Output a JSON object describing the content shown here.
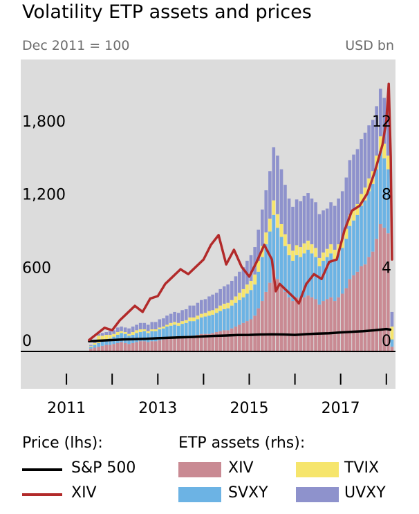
{
  "chart_data": {
    "type": "bar+line",
    "title": "Volatility ETP assets and prices",
    "left_axis_label": "Dec 2011 = 100",
    "right_axis_label": "USD bn",
    "left_ticks": [
      "1,800",
      "1,200",
      "600",
      "0"
    ],
    "left_tick_values": [
      1800,
      1200,
      600,
      0
    ],
    "right_ticks": [
      "12",
      "8",
      "4",
      "0"
    ],
    "right_tick_values": [
      12,
      8,
      4,
      0
    ],
    "left_ylim": [
      -300,
      2400
    ],
    "right_ylim": [
      -2,
      16
    ],
    "x_ticks": [
      "2011",
      "2013",
      "2015",
      "2017"
    ],
    "x_tick_values": [
      2011,
      2013,
      2015,
      2017
    ],
    "x_range": [
      2010.0,
      2018.2
    ],
    "grid": false,
    "legend": {
      "price_title": "Price (lhs):",
      "assets_title": "ETP assets (rhs):",
      "price_series": [
        {
          "name": "S&P 500",
          "color": "#000000"
        },
        {
          "name": "XIV",
          "color": "#b22a2a"
        }
      ],
      "asset_series": [
        {
          "name": "XIV",
          "color": "#c98a93"
        },
        {
          "name": "TVIX",
          "color": "#f6e56c"
        },
        {
          "name": "SVXY",
          "color": "#6cb3e4"
        },
        {
          "name": "UVXY",
          "color": "#8e92cc"
        }
      ]
    },
    "bar_dates": [
      "2011-07-15",
      "2011-08-15",
      "2011-09-15",
      "2011-10-15",
      "2011-11-15",
      "2011-12-15",
      "2012-01-15",
      "2012-02-15",
      "2012-03-15",
      "2012-04-15",
      "2012-05-15",
      "2012-06-15",
      "2012-07-15",
      "2012-08-15",
      "2012-09-15",
      "2012-10-15",
      "2012-11-15",
      "2012-12-15",
      "2013-01-15",
      "2013-02-15",
      "2013-03-15",
      "2013-04-15",
      "2013-05-15",
      "2013-06-15",
      "2013-07-15",
      "2013-08-15",
      "2013-09-15",
      "2013-10-15",
      "2013-11-15",
      "2013-12-15",
      "2014-01-15",
      "2014-02-15",
      "2014-03-15",
      "2014-04-15",
      "2014-05-15",
      "2014-06-15",
      "2014-07-15",
      "2014-08-15",
      "2014-09-15",
      "2014-10-15",
      "2014-11-15",
      "2014-12-15",
      "2015-01-15",
      "2015-02-15",
      "2015-03-15",
      "2015-04-15",
      "2015-05-15",
      "2015-06-15",
      "2015-07-15",
      "2015-08-15",
      "2015-09-15",
      "2015-10-15",
      "2015-11-15",
      "2015-12-15",
      "2016-01-15",
      "2016-02-15",
      "2016-03-15",
      "2016-04-15",
      "2016-05-15",
      "2016-06-15",
      "2016-07-15",
      "2016-08-15",
      "2016-09-15",
      "2016-10-15",
      "2016-11-15",
      "2016-12-15",
      "2017-01-15",
      "2017-02-15",
      "2017-03-15",
      "2017-04-15",
      "2017-05-15",
      "2017-06-15",
      "2017-07-15",
      "2017-08-15",
      "2017-09-15",
      "2017-10-15",
      "2017-11-15",
      "2017-12-15",
      "2018-01-15",
      "2018-02-15"
    ],
    "series": [
      {
        "name": "XIV",
        "values": [
          0.2,
          0.25,
          0.3,
          0.35,
          0.4,
          0.4,
          0.45,
          0.5,
          0.55,
          0.5,
          0.45,
          0.5,
          0.55,
          0.6,
          0.6,
          0.55,
          0.6,
          0.6,
          0.65,
          0.7,
          0.75,
          0.75,
          0.8,
          0.75,
          0.8,
          0.85,
          0.9,
          0.9,
          0.95,
          1.0,
          1.0,
          1.0,
          1.05,
          1.1,
          1.15,
          1.2,
          1.2,
          1.3,
          1.4,
          1.5,
          1.6,
          1.7,
          1.8,
          2.0,
          2.4,
          2.8,
          3.3,
          3.8,
          4.5,
          4.0,
          3.6,
          3.3,
          3.0,
          2.8,
          3.0,
          2.9,
          3.0,
          3.1,
          3.0,
          2.9,
          2.6,
          2.8,
          2.9,
          3.0,
          2.8,
          3.0,
          3.2,
          3.5,
          4.0,
          4.2,
          4.4,
          4.7,
          4.8,
          5.2,
          5.5,
          6.2,
          7.0,
          6.8,
          6.5,
          0.3
        ]
      },
      {
        "name": "SVXY",
        "values": [
          0.1,
          0.15,
          0.2,
          0.25,
          0.3,
          0.35,
          0.4,
          0.45,
          0.5,
          0.5,
          0.45,
          0.45,
          0.5,
          0.5,
          0.55,
          0.5,
          0.55,
          0.55,
          0.6,
          0.6,
          0.65,
          0.7,
          0.7,
          0.7,
          0.75,
          0.75,
          0.8,
          0.8,
          0.85,
          0.9,
          0.95,
          1.0,
          1.0,
          1.05,
          1.1,
          1.15,
          1.2,
          1.25,
          1.3,
          1.35,
          1.4,
          1.5,
          1.6,
          1.7,
          2.0,
          2.4,
          2.6,
          2.8,
          3.0,
          2.8,
          2.7,
          2.5,
          2.3,
          2.2,
          2.3,
          2.3,
          2.4,
          2.5,
          2.4,
          2.3,
          2.1,
          2.2,
          2.3,
          2.4,
          2.3,
          2.4,
          2.5,
          2.7,
          2.9,
          3.0,
          3.1,
          3.3,
          3.5,
          3.6,
          3.7,
          3.8,
          4.0,
          3.8,
          3.5,
          0.4
        ]
      },
      {
        "name": "TVIX",
        "values": [
          0.05,
          0.1,
          0.4,
          0.3,
          0.25,
          0.2,
          0.15,
          0.15,
          0.1,
          0.1,
          0.1,
          0.15,
          0.15,
          0.15,
          0.1,
          0.1,
          0.1,
          0.1,
          0.1,
          0.1,
          0.1,
          0.15,
          0.15,
          0.15,
          0.15,
          0.15,
          0.2,
          0.2,
          0.2,
          0.2,
          0.2,
          0.25,
          0.25,
          0.25,
          0.3,
          0.3,
          0.3,
          0.3,
          0.35,
          0.4,
          0.45,
          0.5,
          0.5,
          0.55,
          0.6,
          0.6,
          0.65,
          0.7,
          0.8,
          0.75,
          0.7,
          0.65,
          0.6,
          0.55,
          0.55,
          0.55,
          0.55,
          0.5,
          0.5,
          0.5,
          0.45,
          0.45,
          0.45,
          0.5,
          0.5,
          0.5,
          0.5,
          0.55,
          0.6,
          0.6,
          0.6,
          0.65,
          0.7,
          0.7,
          0.7,
          0.75,
          0.8,
          0.8,
          0.75,
          0.7
        ]
      },
      {
        "name": "UVXY",
        "values": [
          0.05,
          0.1,
          0.1,
          0.15,
          0.15,
          0.2,
          0.2,
          0.25,
          0.25,
          0.25,
          0.3,
          0.3,
          0.3,
          0.35,
          0.35,
          0.35,
          0.4,
          0.4,
          0.45,
          0.45,
          0.5,
          0.5,
          0.55,
          0.55,
          0.6,
          0.6,
          0.65,
          0.65,
          0.7,
          0.75,
          0.75,
          0.8,
          0.85,
          0.85,
          0.9,
          0.95,
          1.0,
          1.05,
          1.1,
          1.15,
          1.2,
          1.3,
          1.4,
          1.5,
          1.7,
          2.0,
          2.3,
          2.6,
          2.9,
          3.2,
          3.0,
          2.7,
          2.5,
          2.4,
          2.5,
          2.5,
          2.6,
          2.6,
          2.5,
          2.5,
          2.4,
          2.3,
          2.2,
          2.3,
          2.4,
          2.5,
          2.6,
          2.8,
          3.0,
          3.0,
          3.0,
          3.0,
          3.0,
          2.9,
          2.8,
          2.7,
          2.6,
          2.5,
          2.8,
          0.8
        ]
      }
    ],
    "lines": [
      {
        "name": "S&P 500",
        "axis": "left",
        "dates": [
          "2011-07-01",
          "2011-10-01",
          "2012-01-01",
          "2012-04-01",
          "2012-07-01",
          "2012-10-01",
          "2013-01-01",
          "2013-04-01",
          "2013-07-01",
          "2013-10-01",
          "2014-01-01",
          "2014-04-01",
          "2014-07-01",
          "2014-10-01",
          "2015-01-01",
          "2015-04-01",
          "2015-07-01",
          "2015-10-01",
          "2016-01-01",
          "2016-04-01",
          "2016-07-01",
          "2016-10-01",
          "2017-01-01",
          "2017-04-01",
          "2017-07-01",
          "2017-10-01",
          "2018-01-01",
          "2018-02-01"
        ],
        "values": [
          90,
          95,
          100,
          105,
          107,
          110,
          115,
          118,
          122,
          125,
          130,
          134,
          137,
          141,
          142,
          145,
          147,
          145,
          142,
          148,
          152,
          155,
          162,
          167,
          172,
          180,
          190,
          185
        ]
      },
      {
        "name": "XIV",
        "axis": "left",
        "dates": [
          "2011-07-01",
          "2011-09-01",
          "2011-11-01",
          "2012-01-01",
          "2012-03-01",
          "2012-05-01",
          "2012-07-01",
          "2012-09-01",
          "2012-11-01",
          "2013-01-01",
          "2013-03-01",
          "2013-05-01",
          "2013-07-01",
          "2013-09-01",
          "2013-11-01",
          "2014-01-01",
          "2014-03-01",
          "2014-05-01",
          "2014-07-01",
          "2014-09-01",
          "2014-11-01",
          "2015-01-01",
          "2015-03-01",
          "2015-05-01",
          "2015-07-01",
          "2015-08-01",
          "2015-09-01",
          "2015-11-01",
          "2016-01-01",
          "2016-02-01",
          "2016-04-01",
          "2016-06-01",
          "2016-08-01",
          "2016-10-01",
          "2016-12-01",
          "2017-02-01",
          "2017-04-01",
          "2017-06-01",
          "2017-08-01",
          "2017-10-01",
          "2017-12-01",
          "2018-01-01",
          "2018-01-20",
          "2018-02-05",
          "2018-02-15"
        ],
        "values": [
          100,
          150,
          200,
          180,
          260,
          320,
          380,
          330,
          440,
          460,
          560,
          620,
          680,
          640,
          700,
          760,
          880,
          960,
          720,
          840,
          700,
          620,
          740,
          880,
          760,
          500,
          560,
          500,
          440,
          400,
          560,
          640,
          600,
          740,
          760,
          1000,
          1160,
          1200,
          1300,
          1480,
          1700,
          1900,
          2200,
          1600,
          760
        ]
      }
    ]
  }
}
